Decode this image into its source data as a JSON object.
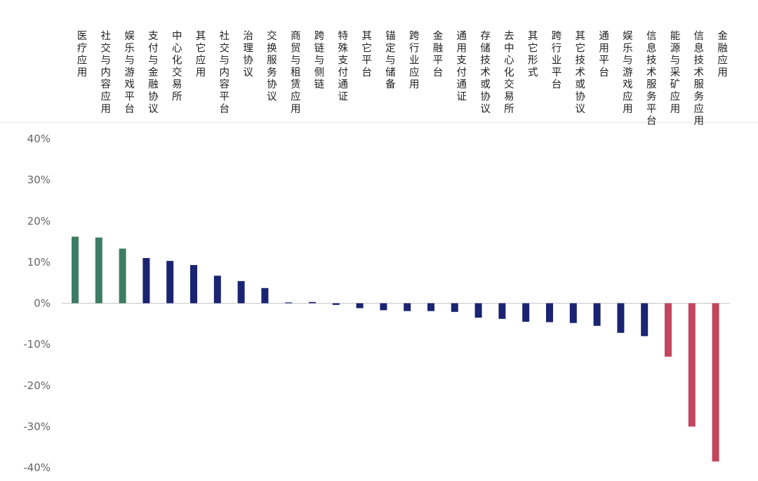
{
  "chart_data": {
    "type": "bar",
    "categories": [
      "医疗应用",
      "社交与内容应用",
      "娱乐与游戏平台",
      "支付与金融协议",
      "中心化交易所",
      "其它应用",
      "社交与内容平台",
      "治理协议",
      "交换服务协议",
      "商贸与租赁应用",
      "跨链与侧链",
      "特殊支付通证",
      "其它平台",
      "锚定与储备",
      "跨行业应用",
      "金融平台",
      "通用支付通证",
      "存储技术或协议",
      "去中心化交易所",
      "其它形式",
      "跨行业平台",
      "其它技术或协议",
      "通用平台",
      "娱乐与游戏应用",
      "信息技术服务平台",
      "能源与采矿应用",
      "信息技术服务应用",
      "金融应用"
    ],
    "values": [
      16.2,
      16.0,
      13.3,
      11.0,
      10.3,
      9.3,
      6.7,
      5.4,
      3.7,
      0.2,
      0.3,
      -0.4,
      -1.2,
      -1.7,
      -1.9,
      -1.9,
      -2.1,
      -3.5,
      -3.8,
      -4.5,
      -4.6,
      -4.8,
      -5.5,
      -7.2,
      -8.0,
      -13.0,
      -30.0,
      -38.5
    ],
    "bar_colors": [
      "#3d7d63",
      "#3d7d63",
      "#3d7d63",
      "#1a2472",
      "#1a2472",
      "#1a2472",
      "#1a2472",
      "#1a2472",
      "#1a2472",
      "#1a2472",
      "#1a2472",
      "#1a2472",
      "#1a2472",
      "#1a2472",
      "#1a2472",
      "#1a2472",
      "#1a2472",
      "#1a2472",
      "#1a2472",
      "#1a2472",
      "#1a2472",
      "#1a2472",
      "#1a2472",
      "#1a2472",
      "#1a2472",
      "#c1465e",
      "#c1465e",
      "#c1465e"
    ],
    "yticks": [
      "40%",
      "30%",
      "20%",
      "10%",
      "0%",
      "-10%",
      "-20%",
      "-30%",
      "-40%"
    ],
    "ylim": [
      -40,
      40
    ],
    "grid": false,
    "zero_line_color": "#c8c8c8"
  }
}
